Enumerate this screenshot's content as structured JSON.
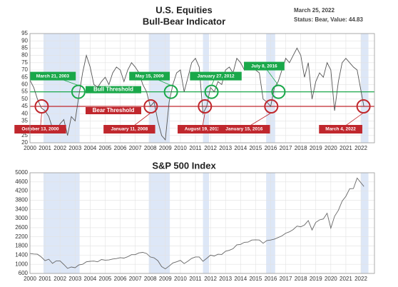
{
  "chart_data": [
    {
      "type": "line",
      "title": "U.S. Equities",
      "subtitle": "Bull-Bear Indicator",
      "date_label": "March 25, 2022",
      "status_label": "Status: Bear, Value: 44.83",
      "x": [
        2000,
        2000.25,
        2000.5,
        2000.75,
        2001,
        2001.25,
        2001.5,
        2001.75,
        2002,
        2002.25,
        2002.5,
        2002.75,
        2003,
        2003.25,
        2003.5,
        2003.75,
        2004,
        2004.25,
        2004.5,
        2004.75,
        2005,
        2005.25,
        2005.5,
        2005.75,
        2006,
        2006.25,
        2006.5,
        2006.75,
        2007,
        2007.25,
        2007.5,
        2007.75,
        2008,
        2008.25,
        2008.5,
        2008.75,
        2009,
        2009.25,
        2009.5,
        2009.75,
        2010,
        2010.25,
        2010.5,
        2010.75,
        2011,
        2011.25,
        2011.5,
        2011.75,
        2012,
        2012.25,
        2012.5,
        2012.75,
        2013,
        2013.25,
        2013.5,
        2013.75,
        2014,
        2014.25,
        2014.5,
        2014.75,
        2015,
        2015.25,
        2015.5,
        2015.75,
        2016,
        2016.25,
        2016.5,
        2016.75,
        2017,
        2017.25,
        2017.5,
        2017.75,
        2018,
        2018.25,
        2018.5,
        2018.75,
        2019,
        2019.25,
        2019.5,
        2019.75,
        2020,
        2020.25,
        2020.5,
        2020.75,
        2021,
        2021.25,
        2021.5,
        2021.75,
        2022.2
      ],
      "values": [
        63,
        58,
        50,
        44,
        42,
        38,
        30,
        27,
        33,
        36,
        25,
        38,
        35,
        52,
        68,
        80,
        72,
        60,
        58,
        62,
        65,
        60,
        68,
        72,
        70,
        62,
        70,
        75,
        72,
        68,
        60,
        55,
        45,
        48,
        35,
        25,
        22,
        48,
        60,
        68,
        70,
        55,
        65,
        75,
        78,
        72,
        40,
        45,
        58,
        55,
        62,
        60,
        70,
        72,
        68,
        78,
        75,
        70,
        75,
        72,
        70,
        68,
        50,
        48,
        45,
        58,
        62,
        70,
        78,
        75,
        80,
        85,
        80,
        65,
        75,
        50,
        62,
        68,
        65,
        75,
        70,
        42,
        62,
        75,
        78,
        75,
        72,
        70,
        44.83
      ],
      "color": "#555555",
      "xlim": [
        2000,
        2022.9
      ],
      "xticks": [
        2000,
        2001,
        2002,
        2003,
        2004,
        2005,
        2006,
        2007,
        2008,
        2009,
        2010,
        2011,
        2012,
        2013,
        2014,
        2015,
        2016,
        2017,
        2018,
        2019,
        2020,
        2021,
        2022
      ],
      "ylim": [
        20,
        95
      ],
      "yticks": [
        20,
        25,
        30,
        35,
        40,
        45,
        50,
        55,
        60,
        65,
        70,
        75,
        80,
        85,
        90,
        95
      ],
      "grid": true,
      "shaded": [
        [
          2000.9,
          2003.3
        ],
        [
          2007.9,
          2009.3
        ],
        [
          2011.5,
          2011.9
        ],
        [
          2015.7,
          2016.3
        ],
        [
          2022.0,
          2022.5
        ]
      ],
      "shade_color": "#dde7f7",
      "thresholds": [
        {
          "label": "Bull Threshold",
          "value": 55,
          "color": "#1aa84a"
        },
        {
          "label": "Bear Threshold",
          "value": 45,
          "color": "#c0272d"
        }
      ],
      "callouts": [
        {
          "label": "October 13, 2000",
          "x": 2000.78,
          "y": 45,
          "color": "#c0272d"
        },
        {
          "label": "March 21, 2003",
          "x": 2003.22,
          "y": 55,
          "color": "#1aa84a"
        },
        {
          "label": "January 11, 2008",
          "x": 2008.03,
          "y": 45,
          "color": "#c0272d"
        },
        {
          "label": "May 15, 2009",
          "x": 2009.37,
          "y": 55,
          "color": "#1aa84a"
        },
        {
          "label": "August 19, 2011",
          "x": 2011.63,
          "y": 45,
          "color": "#c0272d"
        },
        {
          "label": "January 27, 2012",
          "x": 2012.07,
          "y": 55,
          "color": "#1aa84a"
        },
        {
          "label": "January 15, 2016",
          "x": 2016.04,
          "y": 45,
          "color": "#c0272d"
        },
        {
          "label": "July 8, 2016",
          "x": 2016.52,
          "y": 55,
          "color": "#1aa84a"
        },
        {
          "label": "March 4, 2022",
          "x": 2022.17,
          "y": 45,
          "color": "#c0272d"
        }
      ]
    },
    {
      "type": "line",
      "title": "S&P 500 Index",
      "x": [
        2000,
        2000.25,
        2000.5,
        2000.75,
        2001,
        2001.25,
        2001.5,
        2001.75,
        2002,
        2002.25,
        2002.5,
        2002.75,
        2003,
        2003.25,
        2003.5,
        2003.75,
        2004,
        2004.25,
        2004.5,
        2004.75,
        2005,
        2005.25,
        2005.5,
        2005.75,
        2006,
        2006.25,
        2006.5,
        2006.75,
        2007,
        2007.25,
        2007.5,
        2007.75,
        2008,
        2008.25,
        2008.5,
        2008.75,
        2009,
        2009.25,
        2009.5,
        2009.75,
        2010,
        2010.25,
        2010.5,
        2010.75,
        2011,
        2011.25,
        2011.5,
        2011.75,
        2012,
        2012.25,
        2012.5,
        2012.75,
        2013,
        2013.25,
        2013.5,
        2013.75,
        2014,
        2014.25,
        2014.5,
        2014.75,
        2015,
        2015.25,
        2015.5,
        2015.75,
        2016,
        2016.25,
        2016.5,
        2016.75,
        2017,
        2017.25,
        2017.5,
        2017.75,
        2018,
        2018.25,
        2018.5,
        2018.75,
        2019,
        2019.25,
        2019.5,
        2019.75,
        2020,
        2020.25,
        2020.5,
        2020.75,
        2021,
        2021.25,
        2021.5,
        2021.75,
        2022.2
      ],
      "values": [
        1470,
        1450,
        1440,
        1320,
        1160,
        1220,
        1040,
        1150,
        1150,
        990,
        820,
        880,
        850,
        970,
        1000,
        1110,
        1130,
        1140,
        1110,
        1210,
        1180,
        1190,
        1230,
        1250,
        1290,
        1270,
        1330,
        1420,
        1420,
        1500,
        1520,
        1470,
        1320,
        1280,
        1160,
        900,
        800,
        920,
        1060,
        1110,
        1170,
        1030,
        1140,
        1260,
        1320,
        1320,
        1130,
        1260,
        1400,
        1360,
        1440,
        1430,
        1570,
        1610,
        1680,
        1850,
        1870,
        1960,
        1970,
        2060,
        2070,
        2060,
        1920,
        2040,
        2060,
        2100,
        2170,
        2240,
        2360,
        2420,
        2520,
        2670,
        2640,
        2720,
        2910,
        2500,
        2830,
        2940,
        2980,
        3230,
        2580,
        3100,
        3360,
        3760,
        3970,
        4300,
        4310,
        4770,
        4400
      ],
      "color": "#666666",
      "xlim": [
        2000,
        2022.9
      ],
      "xticks": [
        2000,
        2001,
        2002,
        2003,
        2004,
        2005,
        2006,
        2007,
        2008,
        2009,
        2010,
        2011,
        2012,
        2013,
        2014,
        2015,
        2016,
        2017,
        2018,
        2019,
        2020,
        2021,
        2022
      ],
      "ylim": [
        600,
        5000
      ],
      "yticks": [
        600,
        1000,
        1400,
        1800,
        2200,
        2600,
        3000,
        3400,
        3800,
        4200,
        4600,
        5000
      ],
      "grid": true,
      "shaded": [
        [
          2000.9,
          2003.3
        ],
        [
          2007.9,
          2009.3
        ],
        [
          2011.5,
          2011.9
        ],
        [
          2015.7,
          2016.3
        ],
        [
          2022.0,
          2022.5
        ]
      ],
      "shade_color": "#dde7f7"
    }
  ]
}
